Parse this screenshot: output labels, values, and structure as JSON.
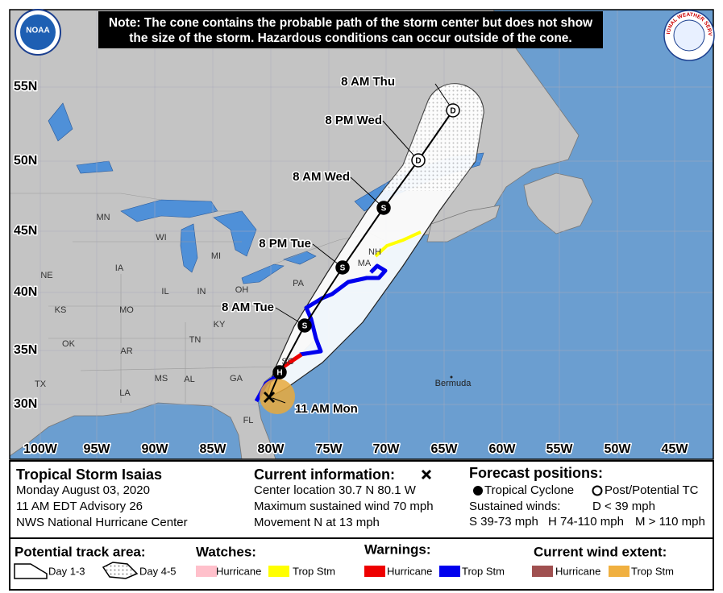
{
  "note": [
    "Note: The cone contains the probable path of the storm center but does not show",
    "the size of the storm. Hazardous conditions can occur outside of the cone."
  ],
  "logos": {
    "noaa": "NOAA",
    "nws": "NATIONAL WEATHER SERVICE"
  },
  "map": {
    "lat_labels": [
      "55N",
      "50N",
      "45N",
      "40N",
      "35N",
      "30N"
    ],
    "lon_labels": [
      "100W",
      "95W",
      "90W",
      "85W",
      "80W",
      "75W",
      "70W",
      "65W",
      "60W",
      "55W",
      "50W",
      "45W"
    ],
    "state_labels": [
      "MN",
      "WI",
      "MI",
      "NE",
      "IA",
      "IL",
      "IN",
      "OH",
      "PA",
      "KS",
      "MO",
      "KY",
      "TN",
      "OK",
      "AR",
      "SC",
      "MS",
      "AL",
      "GA",
      "TX",
      "LA",
      "FL",
      "NH",
      "MA"
    ],
    "place_labels": [
      "Bermuda"
    ],
    "track": {
      "time_labels": [
        "8 AM Thu",
        "8 PM Wed",
        "8 AM Wed",
        "8 PM Tue",
        "8 AM Tue",
        "11 AM Mon"
      ],
      "markers": [
        "H",
        "S",
        "S",
        "S",
        "D",
        "D"
      ]
    }
  },
  "info": {
    "storm": {
      "name": "Tropical Storm Isaias",
      "lines": [
        "Monday August 03, 2020",
        "11 AM EDT Advisory 26",
        "NWS National Hurricane Center"
      ]
    },
    "current": {
      "title": "Current information:",
      "lines": [
        "Center location 30.7 N 80.1 W",
        "Maximum sustained wind 70 mph",
        "Movement N at 13 mph"
      ]
    },
    "forecast": {
      "title": "Forecast positions:",
      "tc": "Tropical Cyclone",
      "post": "Post/Potential TC",
      "winds_label": "Sustained winds:",
      "d": "D < 39 mph",
      "s": "S 39-73 mph",
      "h": "H 74-110 mph",
      "m": "M > 110 mph"
    }
  },
  "legend": {
    "track_area": {
      "title": "Potential track area:",
      "day13": "Day 1-3",
      "day45": "Day 4-5"
    },
    "watches": {
      "title": "Watches:",
      "hurricane": "Hurricane",
      "trop_stm": "Trop Stm"
    },
    "warnings": {
      "title": "Warnings:",
      "hurricane": "Hurricane",
      "trop_stm": "Trop Stm"
    },
    "wind_extent": {
      "title": "Current wind extent:",
      "hurricane": "Hurricane",
      "trop_stm": "Trop Stm"
    }
  }
}
